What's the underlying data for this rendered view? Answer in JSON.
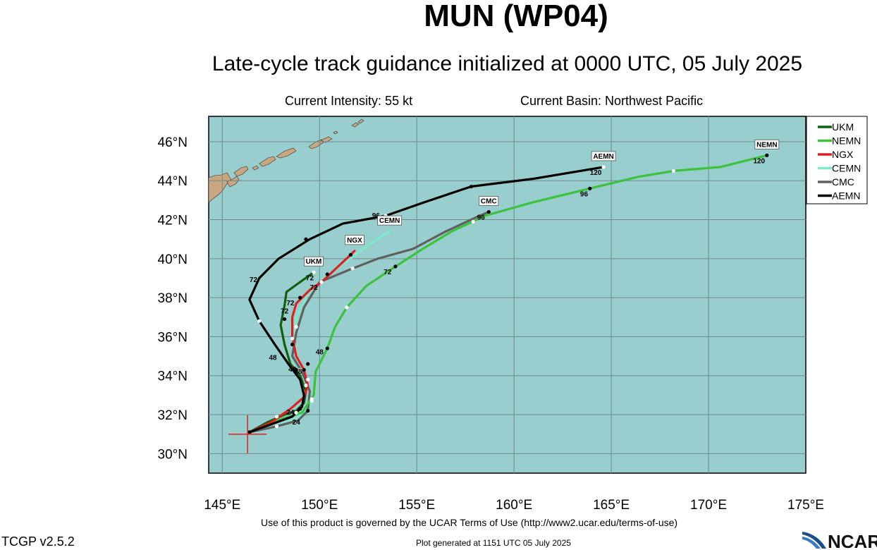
{
  "header": {
    "title": "MUN (WP04)",
    "subtitle": "Late-cycle track guidance initialized at 0000 UTC, 05 July 2025",
    "current_intensity": "Current Intensity: 55 kt",
    "current_basin": "Current Basin: Northwest Pacific"
  },
  "footer": {
    "terms": "Use of this product is governed by the UCAR Terms of Use (http://www2.ucar.edu/terms-of-use)",
    "version": "TCGP v2.5.2",
    "generated": "Plot generated at 1151 UTC   05 July 2025",
    "logo_text": "NCAR"
  },
  "colors": {
    "ocean": "#98cece",
    "land": "#c8a680",
    "grid": "#6f8a8a",
    "UKM": "#0f5f0f",
    "NEMN": "#3cc23c",
    "NGX": "#e02020",
    "CEMN": "#7fe8cc",
    "CMC": "#606060",
    "AEMN": "#000000"
  },
  "chart_data": {
    "type": "map-track",
    "xlim": [
      144.3,
      175
    ],
    "ylim": [
      29,
      47.3
    ],
    "x_ticks": [
      145,
      150,
      155,
      160,
      165,
      170,
      175
    ],
    "x_tick_labels": [
      "145°E",
      "150°E",
      "155°E",
      "160°E",
      "165°E",
      "170°E",
      "175°E"
    ],
    "y_ticks": [
      30,
      32,
      34,
      36,
      38,
      40,
      42,
      44,
      46
    ],
    "y_tick_labels": [
      "30°N",
      "32°N",
      "34°N",
      "36°N",
      "38°N",
      "40°N",
      "42°N",
      "44°N",
      "46°N"
    ],
    "current_position": {
      "lon": 146.3,
      "lat": 31.0
    },
    "legend_position": "top-right",
    "series": [
      {
        "name": "UKM",
        "end_label": "UKM",
        "track": [
          [
            146.4,
            31.1
          ],
          [
            147.3,
            31.6
          ],
          [
            148.2,
            32.0
          ],
          [
            148.8,
            32.2
          ],
          [
            149.2,
            32.6
          ],
          [
            149.3,
            33.2
          ],
          [
            149.0,
            34.0
          ],
          [
            148.5,
            34.6
          ],
          [
            148.2,
            35.6
          ],
          [
            148.0,
            36.6
          ],
          [
            148.2,
            37.6
          ],
          [
            148.3,
            38.3
          ],
          [
            149.0,
            38.8
          ],
          [
            149.7,
            39.3
          ]
        ],
        "points": [
          [
            146.4,
            31.1
          ],
          [
            147.8,
            31.9
          ],
          [
            149.0,
            32.3
          ],
          [
            149.0,
            34.3
          ],
          [
            148.2,
            36.9
          ],
          [
            149.7,
            39.3
          ]
        ],
        "labels": [
          {
            "text": "24",
            "lon": 148.5,
            "lat": 32.0
          },
          {
            "text": "48",
            "lon": 148.6,
            "lat": 34.2
          },
          {
            "text": "72",
            "lon": 148.2,
            "lat": 37.2
          },
          {
            "text": "72",
            "lon": 149.5,
            "lat": 38.9
          }
        ]
      },
      {
        "name": "NEMN",
        "end_label": "NEMN",
        "track": [
          [
            146.4,
            31.1
          ],
          [
            147.8,
            31.7
          ],
          [
            149.1,
            32.1
          ],
          [
            149.7,
            33.0
          ],
          [
            149.8,
            34.2
          ],
          [
            150.4,
            35.4
          ],
          [
            150.8,
            36.5
          ],
          [
            151.4,
            37.5
          ],
          [
            152.4,
            38.6
          ],
          [
            153.9,
            39.6
          ],
          [
            155.3,
            40.5
          ],
          [
            156.8,
            41.4
          ],
          [
            158.5,
            42.2
          ],
          [
            161.0,
            42.9
          ],
          [
            163.9,
            43.6
          ],
          [
            166.4,
            44.2
          ],
          [
            168.2,
            44.5
          ],
          [
            170.6,
            44.7
          ],
          [
            173.0,
            45.3
          ]
        ],
        "points": [
          [
            146.4,
            31.1
          ],
          [
            149.6,
            32.8
          ],
          [
            150.4,
            35.4
          ],
          [
            151.4,
            37.5
          ],
          [
            153.9,
            39.6
          ],
          [
            157.9,
            41.9
          ],
          [
            163.9,
            43.6
          ],
          [
            168.2,
            44.5
          ],
          [
            173.0,
            45.3
          ]
        ],
        "labels": [
          {
            "text": "48",
            "lon": 150.0,
            "lat": 35.1
          },
          {
            "text": "72",
            "lon": 153.5,
            "lat": 39.2
          },
          {
            "text": "96",
            "lon": 163.6,
            "lat": 43.2
          },
          {
            "text": "120",
            "lon": 172.6,
            "lat": 44.9
          }
        ]
      },
      {
        "name": "NGX",
        "end_label": "NGX",
        "track": [
          [
            146.4,
            31.1
          ],
          [
            147.5,
            31.6
          ],
          [
            148.5,
            32.3
          ],
          [
            149.2,
            32.9
          ],
          [
            149.4,
            33.5
          ],
          [
            149.2,
            34.3
          ],
          [
            148.8,
            35.0
          ],
          [
            148.6,
            36.0
          ],
          [
            148.6,
            37.0
          ],
          [
            148.8,
            37.7
          ],
          [
            149.5,
            38.4
          ],
          [
            150.1,
            38.8
          ],
          [
            151.6,
            40.2
          ],
          [
            151.8,
            40.4
          ]
        ],
        "points": [
          [
            146.4,
            31.1
          ],
          [
            149.3,
            33.5
          ],
          [
            148.8,
            34.3
          ],
          [
            148.6,
            35.9
          ],
          [
            149.0,
            38.0
          ],
          [
            150.1,
            38.8
          ],
          [
            151.6,
            40.2
          ]
        ],
        "labels": [
          {
            "text": "48",
            "lon": 148.9,
            "lat": 34.1
          },
          {
            "text": "72",
            "lon": 148.5,
            "lat": 37.6
          },
          {
            "text": "72",
            "lon": 149.7,
            "lat": 38.4
          }
        ]
      },
      {
        "name": "CEMN",
        "end_label": "CEMN",
        "track": [
          [
            146.4,
            31.1
          ],
          [
            147.7,
            31.4
          ],
          [
            148.8,
            31.8
          ],
          [
            149.5,
            32.4
          ],
          [
            149.5,
            33.2
          ],
          [
            149.1,
            34.3
          ],
          [
            148.8,
            35.0
          ],
          [
            148.7,
            36.0
          ],
          [
            148.8,
            37.0
          ],
          [
            149.4,
            38.2
          ],
          [
            150.4,
            39.2
          ],
          [
            151.6,
            40.0
          ],
          [
            152.5,
            40.7
          ],
          [
            153.6,
            41.4
          ]
        ],
        "points": [
          [
            146.4,
            31.1
          ],
          [
            149.6,
            32.7
          ],
          [
            149.2,
            34.3
          ],
          [
            148.8,
            36.5
          ],
          [
            150.4,
            39.2
          ]
        ],
        "labels": []
      },
      {
        "name": "CMC",
        "end_label": "CMC",
        "track": [
          [
            146.4,
            31.1
          ],
          [
            147.8,
            31.4
          ],
          [
            148.9,
            31.7
          ],
          [
            149.4,
            32.2
          ],
          [
            149.5,
            33.2
          ],
          [
            149.1,
            34.2
          ],
          [
            148.6,
            35.0
          ],
          [
            148.8,
            36.2
          ],
          [
            149.2,
            37.5
          ],
          [
            150.0,
            38.8
          ],
          [
            151.7,
            39.5
          ],
          [
            153.0,
            40.0
          ],
          [
            154.8,
            40.5
          ],
          [
            156.5,
            41.4
          ],
          [
            158.0,
            42.1
          ],
          [
            158.7,
            42.4
          ]
        ],
        "points": [
          [
            146.4,
            31.1
          ],
          [
            147.8,
            31.4
          ],
          [
            149.4,
            32.2
          ],
          [
            149.4,
            33.8
          ],
          [
            148.6,
            35.6
          ],
          [
            151.7,
            39.5
          ],
          [
            158.7,
            42.4
          ]
        ],
        "labels": [
          {
            "text": "96",
            "lon": 158.3,
            "lat": 42.0
          }
        ]
      },
      {
        "name": "AEMN",
        "end_label": "AEMN",
        "track": [
          [
            146.4,
            31.1
          ],
          [
            147.5,
            31.5
          ],
          [
            148.6,
            31.9
          ],
          [
            149.1,
            32.4
          ],
          [
            149.2,
            33.0
          ],
          [
            149.0,
            33.8
          ],
          [
            148.4,
            34.6
          ],
          [
            147.7,
            35.6
          ],
          [
            146.9,
            36.8
          ],
          [
            146.4,
            37.9
          ],
          [
            146.9,
            39.0
          ],
          [
            147.9,
            40.0
          ],
          [
            149.5,
            41.0
          ],
          [
            151.2,
            41.8
          ],
          [
            153.4,
            42.2
          ],
          [
            155.4,
            42.9
          ],
          [
            157.8,
            43.7
          ],
          [
            161.0,
            44.1
          ],
          [
            164.6,
            44.7
          ]
        ],
        "points": [
          [
            146.4,
            31.1
          ],
          [
            148.8,
            32.1
          ],
          [
            149.4,
            34.6
          ],
          [
            146.9,
            36.8
          ],
          [
            149.3,
            41.0
          ],
          [
            153.4,
            42.2
          ],
          [
            157.8,
            43.7
          ],
          [
            164.6,
            44.7
          ]
        ],
        "labels": [
          {
            "text": "24",
            "lon": 148.8,
            "lat": 31.5
          },
          {
            "text": "48",
            "lon": 147.6,
            "lat": 34.8
          },
          {
            "text": "72",
            "lon": 146.6,
            "lat": 38.8
          },
          {
            "text": "96",
            "lon": 152.9,
            "lat": 42.1
          },
          {
            "text": "120",
            "lon": 164.2,
            "lat": 44.3
          }
        ]
      }
    ]
  }
}
